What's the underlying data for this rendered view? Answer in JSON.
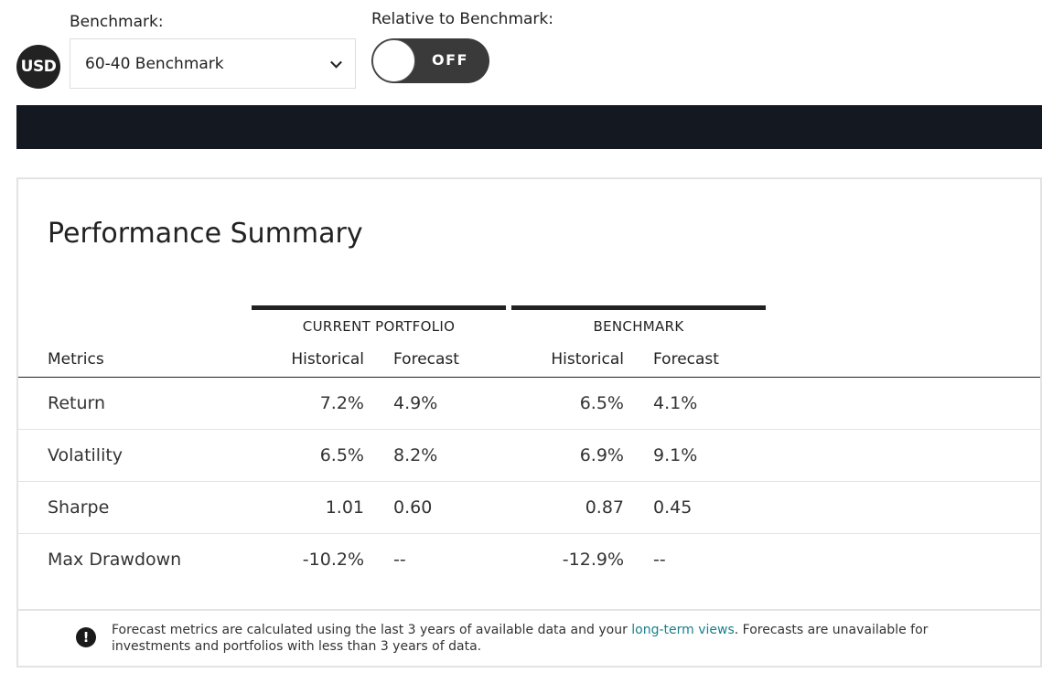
{
  "currency_badge": "USD",
  "benchmark": {
    "label": "Benchmark:",
    "selected": "60-40 Benchmark"
  },
  "relative": {
    "label": "Relative to Benchmark:",
    "state": "OFF"
  },
  "summary": {
    "title": "Performance Summary",
    "groups": {
      "current": "CURRENT PORTFOLIO",
      "benchmark": "BENCHMARK"
    },
    "columns": {
      "metrics": "Metrics",
      "cur_hist": "Historical",
      "cur_fore": "Forecast",
      "bench_hist": "Historical",
      "bench_fore": "Forecast"
    },
    "rows": [
      {
        "name": "Return",
        "cur_hist": "7.2%",
        "cur_fore": "4.9%",
        "bench_hist": "6.5%",
        "bench_fore": "4.1%"
      },
      {
        "name": "Volatility",
        "cur_hist": "6.5%",
        "cur_fore": "8.2%",
        "bench_hist": "6.9%",
        "bench_fore": "9.1%"
      },
      {
        "name": "Sharpe",
        "cur_hist": "1.01",
        "cur_fore": "0.60",
        "bench_hist": "0.87",
        "bench_fore": "0.45"
      },
      {
        "name": "Max Drawdown",
        "cur_hist": "-10.2%",
        "cur_fore": "--",
        "bench_hist": "-12.9%",
        "bench_fore": "--"
      }
    ]
  },
  "note": {
    "icon": "exclamation-icon",
    "before": "Forecast metrics are calculated using the last 3 years of available data and your ",
    "link": "long-term views",
    "after": ". Forecasts are unavailable for investments and portfolios with less than 3 years of data."
  },
  "colors": {
    "dark_bar": "#141820",
    "link": "#1a7f8a",
    "toggle_bg": "#3a3a3a"
  }
}
